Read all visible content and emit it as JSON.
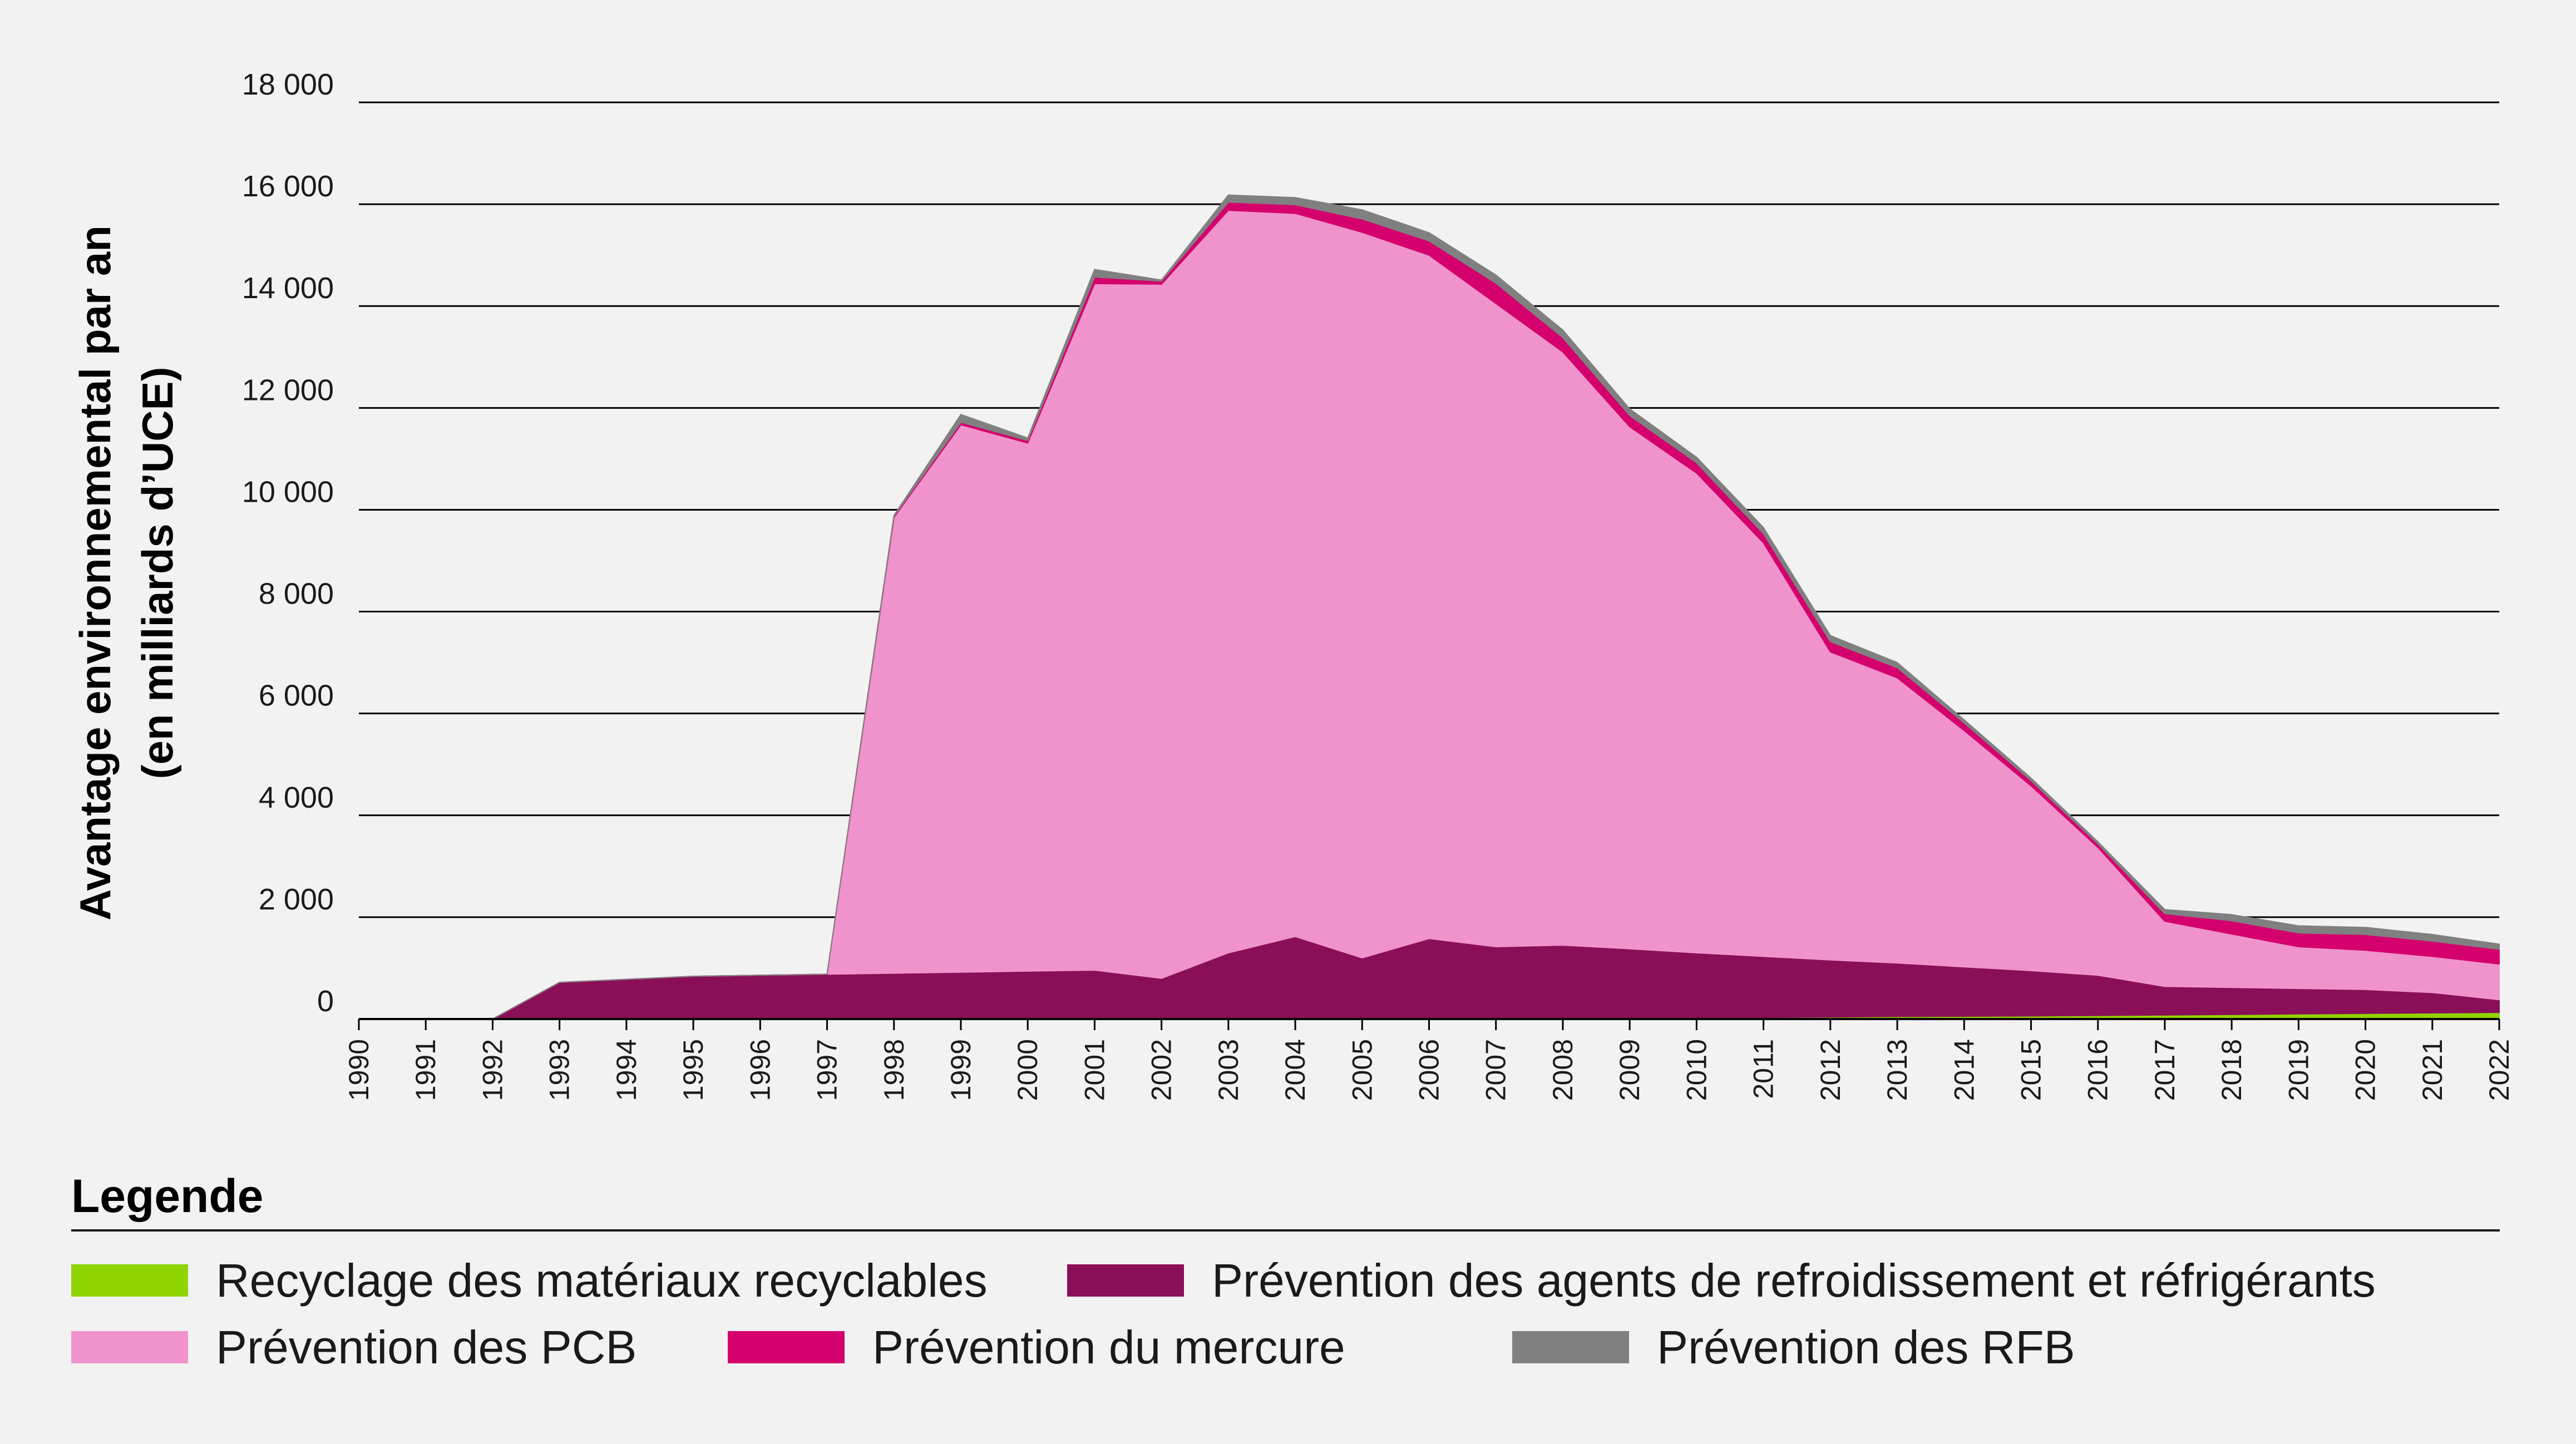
{
  "chart_data": {
    "type": "area",
    "stacked": true,
    "title": "",
    "ylabel_line1": "Avantage environnemental par an",
    "ylabel_line2": "(en milliards d’UCE)",
    "xlabel": "",
    "ylim": [
      0,
      18000
    ],
    "yticks": [
      "0",
      "2 000",
      "4 000",
      "6 000",
      "8 000",
      "10 000",
      "12 000",
      "14 000",
      "16 000",
      "18 000"
    ],
    "ytick_values": [
      0,
      2000,
      4000,
      6000,
      8000,
      10000,
      12000,
      14000,
      16000,
      18000
    ],
    "grid": true,
    "legend_position": "bottom",
    "x": [
      "1990",
      "1991",
      "1992",
      "1993",
      "1994",
      "1995",
      "1996",
      "1997",
      "1998",
      "1999",
      "2000",
      "2001",
      "2002",
      "2003",
      "2004",
      "2005",
      "2006",
      "2007",
      "2008",
      "2009",
      "2010",
      "2011",
      "2012",
      "2013",
      "2014",
      "2015",
      "2016",
      "2017",
      "2018",
      "2019",
      "2020",
      "2021",
      "2022"
    ],
    "series": [
      {
        "name": "Recyclage des matériaux recyclables",
        "color": "#8fd400",
        "values": [
          0,
          0,
          0,
          0,
          0,
          0,
          0,
          0,
          0,
          0,
          0,
          0,
          0,
          0,
          0,
          0,
          0,
          0,
          0,
          0,
          0,
          30,
          40,
          50,
          55,
          60,
          70,
          80,
          90,
          100,
          110,
          120,
          130
        ]
      },
      {
        "name": "Prévention des agents de refroidissement et réfrigérants",
        "color": "#8a0f58",
        "values": [
          0,
          0,
          0,
          720,
          780,
          840,
          860,
          880,
          900,
          920,
          940,
          960,
          800,
          1300,
          1620,
          1200,
          1580,
          1420,
          1450,
          1380,
          1300,
          1200,
          1120,
          1050,
          970,
          890,
          790,
          560,
          530,
          500,
          470,
          400,
          250
        ]
      },
      {
        "name": "Prévention des PCB",
        "color": "#f093cc",
        "values": [
          0,
          0,
          0,
          0,
          0,
          0,
          0,
          0,
          8950,
          10750,
          10370,
          13480,
          13630,
          14580,
          14200,
          14250,
          13420,
          12630,
          11650,
          10250,
          9420,
          8120,
          6050,
          5600,
          4640,
          3630,
          2510,
          1280,
          1050,
          820,
          770,
          710,
          700
        ]
      },
      {
        "name": "Prévention du mercure",
        "color": "#d4006d",
        "values": [
          0,
          0,
          0,
          0,
          0,
          0,
          0,
          0,
          20,
          50,
          50,
          130,
          60,
          160,
          170,
          260,
          280,
          400,
          280,
          220,
          200,
          180,
          200,
          200,
          150,
          100,
          70,
          150,
          260,
          270,
          310,
          300,
          290
        ]
      },
      {
        "name": "Prévention des RFB",
        "color": "#808080",
        "values": [
          0,
          0,
          0,
          0,
          0,
          0,
          0,
          0,
          20,
          150,
          50,
          150,
          20,
          140,
          140,
          180,
          160,
          160,
          150,
          130,
          110,
          120,
          120,
          100,
          60,
          50,
          40,
          80,
          120,
          140,
          140,
          130,
          100
        ]
      }
    ]
  },
  "legend": {
    "title": "Legende"
  },
  "colors": {
    "background": "#f2f2f2",
    "grid": "#000000"
  }
}
